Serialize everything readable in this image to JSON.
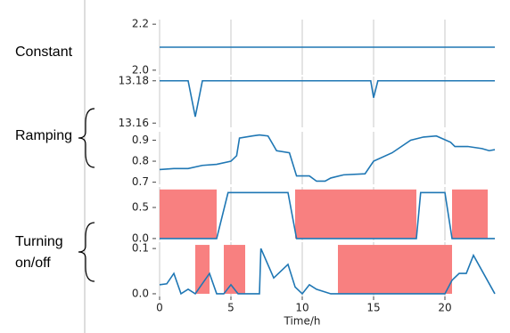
{
  "groups": [
    "Constant",
    "Ramping",
    "Turning on/off"
  ],
  "chart_data": [
    {
      "type": "line",
      "color": "#1f77b4",
      "xlim": [
        -1.5,
        24
      ],
      "xticks": [
        0,
        5,
        10,
        15,
        20
      ],
      "ylim": [
        1.98,
        2.22
      ],
      "yticks": [
        {
          "value": 2,
          "label": "2.0"
        },
        2.2
      ],
      "grid": true,
      "x": [
        0,
        23.5
      ],
      "values": [
        2.1,
        2.1
      ]
    },
    {
      "type": "line",
      "color": "#1f77b4",
      "xlim": [
        -1.5,
        24
      ],
      "xticks": [
        0,
        5,
        10,
        15,
        20
      ],
      "ylim": [
        13.158,
        13.182
      ],
      "yticks": [
        13.16,
        13.18
      ],
      "grid": true,
      "x": [
        0,
        2,
        2.5,
        3,
        14.8,
        15,
        15.3,
        23.5
      ],
      "values": [
        13.18,
        13.18,
        13.163,
        13.18,
        13.18,
        13.172,
        13.18,
        13.18
      ]
    },
    {
      "type": "line",
      "color": "#1f77b4",
      "xlim": [
        -1.5,
        24
      ],
      "xticks": [
        0,
        5,
        10,
        15,
        20
      ],
      "ylim": [
        0.69,
        0.94
      ],
      "yticks": [
        0.7,
        0.8,
        0.9
      ],
      "grid": true,
      "x": [
        0,
        1,
        2,
        3,
        4,
        5,
        5.4,
        5.6,
        6.5,
        7,
        7.6,
        8.2,
        9.1,
        9.6,
        10.5,
        11,
        11.6,
        12,
        12.9,
        14.4,
        15,
        16.3,
        17.6,
        18.5,
        19.4,
        20.4,
        20.7,
        21.6,
        22.6,
        23.1,
        23.5
      ],
      "values": [
        0.76,
        0.765,
        0.765,
        0.78,
        0.785,
        0.8,
        0.826,
        0.91,
        0.92,
        0.925,
        0.92,
        0.85,
        0.84,
        0.73,
        0.73,
        0.705,
        0.705,
        0.72,
        0.735,
        0.74,
        0.8,
        0.84,
        0.9,
        0.915,
        0.92,
        0.89,
        0.87,
        0.87,
        0.86,
        0.85,
        0.855
      ]
    },
    {
      "type": "line",
      "color": "#1f77b4",
      "xlim": [
        -1.5,
        24
      ],
      "xticks": [
        0,
        5,
        10,
        15,
        20
      ],
      "ylim": [
        -0.03,
        0.83
      ],
      "yticks": [
        {
          "value": 0,
          "label": "0.0"
        },
        0.5
      ],
      "grid": true,
      "x": [
        0,
        4,
        4.8,
        9,
        9.6,
        18,
        18.3,
        20,
        20.5,
        23.5
      ],
      "values": [
        0,
        0,
        0.74,
        0.74,
        0,
        0,
        0.74,
        0.74,
        0,
        0
      ],
      "span_color": "#f88080",
      "span_range": [
        0,
        0.79
      ],
      "spans": [
        [
          0,
          4
        ],
        [
          9.5,
          18
        ],
        [
          20.5,
          23
        ]
      ]
    },
    {
      "type": "line",
      "color": "#1f77b4",
      "xlim": [
        -1.5,
        24
      ],
      "xticks": [
        0,
        5,
        10,
        15,
        20
      ],
      "ylim": [
        -0.006,
        0.114
      ],
      "yticks": [
        {
          "value": 0,
          "label": "0.0"
        },
        0.1
      ],
      "grid": true,
      "xlabel": "Time/h",
      "show_xtick_labels": true,
      "x": [
        0,
        0.5,
        1,
        1.5,
        2,
        2.5,
        3.5,
        4,
        4.5,
        5,
        5.5,
        6,
        7,
        7.1,
        8,
        8.5,
        9,
        9.5,
        10,
        10.5,
        11,
        12,
        20,
        20.5,
        21,
        21.5,
        22,
        23.5
      ],
      "values": [
        0.02,
        0.022,
        0.045,
        0,
        0.01,
        0,
        0.045,
        0,
        0,
        0.02,
        0,
        0,
        0,
        0.1,
        0.035,
        0.05,
        0.065,
        0.015,
        0,
        0.02,
        0.01,
        0,
        0,
        0.03,
        0.045,
        0.045,
        0.085,
        0
      ],
      "span_color": "#f88080",
      "span_range": [
        0,
        0.108
      ],
      "spans": [
        [
          2.5,
          3.5
        ],
        [
          4.5,
          6
        ],
        [
          12.5,
          20.5
        ]
      ]
    }
  ]
}
